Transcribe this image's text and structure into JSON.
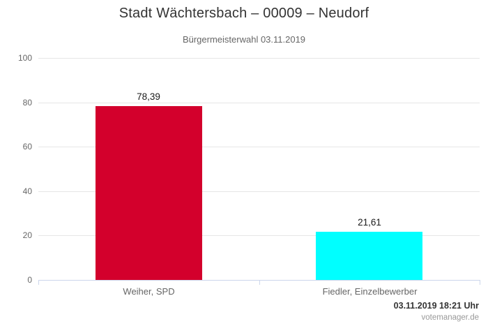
{
  "header": {
    "title": "Stadt Wächtersbach – 00009 – Neudorf",
    "subtitle": "Bürgermeisterwahl 03.11.2019"
  },
  "footer": {
    "timestamp": "03.11.2019 18:21 Uhr",
    "credits": "votemanager.de"
  },
  "chart_data": {
    "type": "bar",
    "title": "Stadt Wächtersbach – 00009 – Neudorf",
    "subtitle": "Bürgermeisterwahl 03.11.2019",
    "categories": [
      "Weiher, SPD",
      "Fiedler, Einzelbewerber"
    ],
    "values": [
      78.39,
      21.61
    ],
    "value_labels": [
      "78,39",
      "21,61"
    ],
    "bar_colors": [
      "#d3002c",
      "#00ffff"
    ],
    "ylim": [
      0,
      100
    ],
    "yticks": [
      0,
      20,
      40,
      60,
      80,
      100
    ],
    "grid": true,
    "legend": "none",
    "xlabel": "",
    "ylabel": ""
  },
  "colors": {
    "background": "#ffffff",
    "grid": "#e6e6e6",
    "axis": "#ccd6eb",
    "title": "#333333",
    "subtitle": "#666666",
    "tick_label": "#666666",
    "category_label": "#666666",
    "value_label": "#1a1a1a",
    "timestamp": "#333333",
    "credits": "#999999"
  }
}
